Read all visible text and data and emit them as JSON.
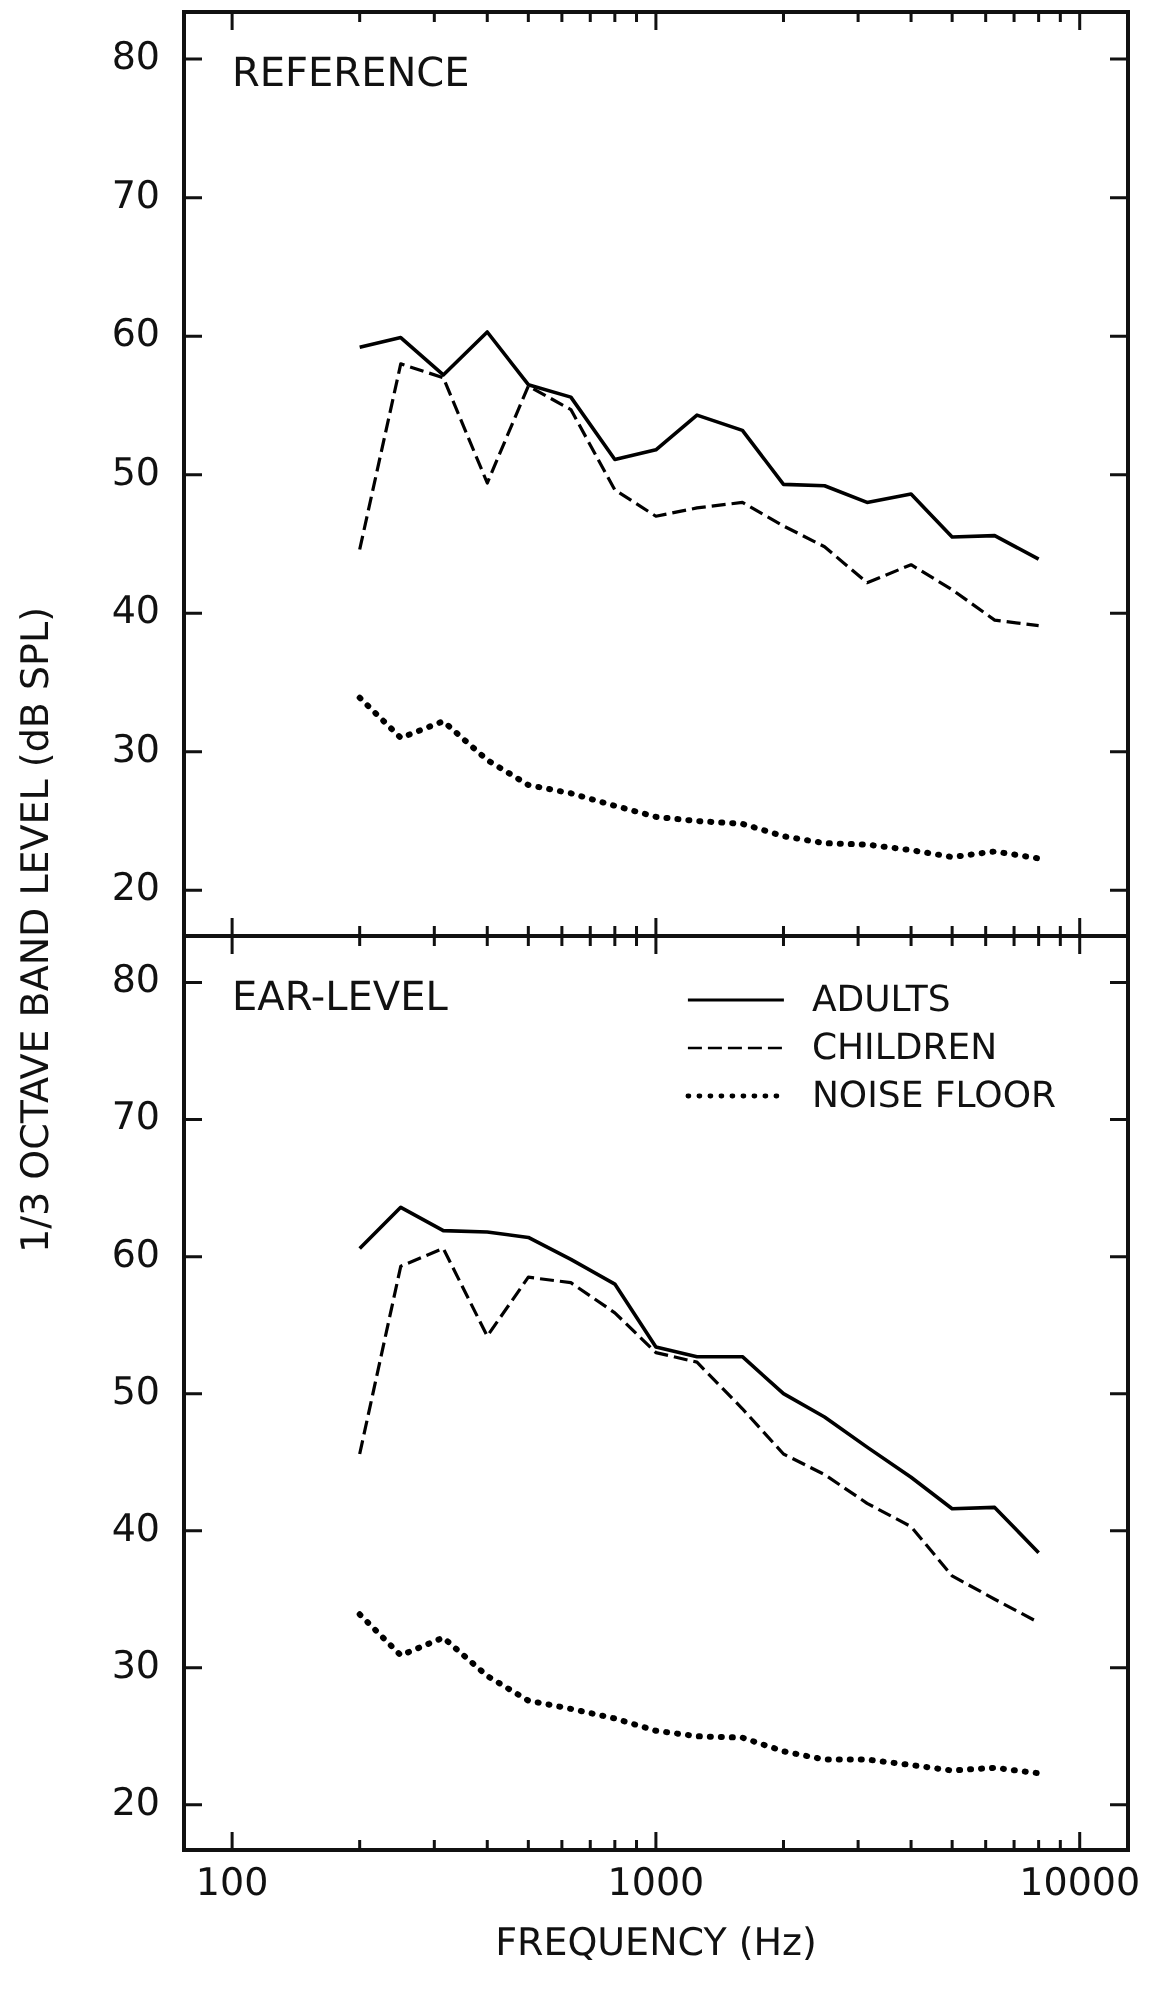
{
  "chart_data": [
    {
      "type": "line",
      "title": "REFERENCE",
      "ylabel": "1/3 OCTAVE BAND LEVEL (dB SPL)",
      "log": "x",
      "tick_labels": "y",
      "marker": "none",
      "x": [
        200,
        250,
        315,
        400,
        500,
        630,
        800,
        1000,
        1250,
        1600,
        2000,
        2500,
        3150,
        4000,
        5000,
        6300,
        8000
      ],
      "xlim": [
        77,
        13000
      ],
      "xticks": [
        100,
        {
          "value": 200,
          "label": null
        },
        {
          "value": 300,
          "label": null
        },
        {
          "value": 400,
          "label": null
        },
        {
          "value": 500,
          "label": null
        },
        {
          "value": 600,
          "label": null
        },
        {
          "value": 700,
          "label": null
        },
        {
          "value": 800,
          "label": null
        },
        {
          "value": 900,
          "label": null
        },
        1000,
        {
          "value": 2000,
          "label": null
        },
        {
          "value": 3000,
          "label": null
        },
        {
          "value": 4000,
          "label": null
        },
        {
          "value": 5000,
          "label": null
        },
        {
          "value": 6000,
          "label": null
        },
        {
          "value": 7000,
          "label": null
        },
        {
          "value": 8000,
          "label": null
        },
        {
          "value": 9000,
          "label": null
        },
        10000
      ],
      "ylim": [
        16.7,
        83.4
      ],
      "yticks": [
        20,
        30,
        40,
        50,
        60,
        70,
        80
      ],
      "series": [
        {
          "color": "#000000",
          "line_style": "solid",
          "values": [
            59.2,
            59.9,
            57.2,
            60.3,
            56.5,
            55.6,
            51.1,
            51.8,
            54.3,
            53.2,
            49.3,
            49.2,
            48.0,
            48.6,
            45.5,
            45.6,
            43.9
          ]
        },
        {
          "color": "#000000",
          "line_style": "dashed",
          "values": [
            44.6,
            58.0,
            57.0,
            49.4,
            56.4,
            54.7,
            48.9,
            47.0,
            47.6,
            48.0,
            46.3,
            44.8,
            42.2,
            43.5,
            41.7,
            39.5,
            39.1
          ]
        },
        {
          "color": "#000000",
          "line_style": "dotted",
          "values": [
            33.9,
            31.0,
            32.2,
            29.4,
            27.6,
            27.0,
            26.1,
            25.3,
            25.0,
            24.8,
            23.9,
            23.4,
            23.3,
            22.9,
            22.4,
            22.8,
            22.3
          ]
        }
      ]
    },
    {
      "type": "line",
      "title": "EAR-LEVEL",
      "xlabel": "FREQUENCY (Hz)",
      "log": "x",
      "legend": "top right",
      "marker": "none",
      "x": [
        200,
        250,
        315,
        400,
        500,
        630,
        800,
        1000,
        1250,
        1600,
        2000,
        2500,
        3150,
        4000,
        5000,
        6300,
        8000
      ],
      "xlim": [
        77,
        13000
      ],
      "xticks": [
        100,
        {
          "value": 200,
          "label": null
        },
        {
          "value": 300,
          "label": null
        },
        {
          "value": 400,
          "label": null
        },
        {
          "value": 500,
          "label": null
        },
        {
          "value": 600,
          "label": null
        },
        {
          "value": 700,
          "label": null
        },
        {
          "value": 800,
          "label": null
        },
        {
          "value": 900,
          "label": null
        },
        1000,
        {
          "value": 2000,
          "label": null
        },
        {
          "value": 3000,
          "label": null
        },
        {
          "value": 4000,
          "label": null
        },
        {
          "value": 5000,
          "label": null
        },
        {
          "value": 6000,
          "label": null
        },
        {
          "value": 7000,
          "label": null
        },
        {
          "value": 8000,
          "label": null
        },
        {
          "value": 9000,
          "label": null
        },
        10000
      ],
      "ylim": [
        16.7,
        83.4
      ],
      "yticks": [
        20,
        30,
        40,
        50,
        60,
        70,
        80
      ],
      "series": [
        {
          "name": "ADULTS",
          "color": "#000000",
          "line_style": "solid",
          "values": [
            60.6,
            63.6,
            61.9,
            61.8,
            61.4,
            59.8,
            58.0,
            53.4,
            52.7,
            52.7,
            50.0,
            48.3,
            46.1,
            43.9,
            41.6,
            41.7,
            38.4
          ]
        },
        {
          "name": "CHILDREN",
          "color": "#000000",
          "line_style": "dashed",
          "values": [
            45.6,
            59.3,
            60.6,
            54.2,
            58.5,
            58.1,
            55.9,
            53.0,
            52.3,
            48.9,
            45.6,
            44.1,
            42.0,
            40.3,
            36.7,
            35.0,
            33.3
          ]
        },
        {
          "name": "NOISE FLOOR",
          "color": "#000000",
          "line_style": "dotted",
          "values": [
            33.9,
            30.9,
            32.2,
            29.4,
            27.6,
            27.0,
            26.3,
            25.4,
            25.0,
            24.9,
            23.9,
            23.3,
            23.3,
            22.9,
            22.5,
            22.7,
            22.3
          ]
        }
      ]
    }
  ]
}
